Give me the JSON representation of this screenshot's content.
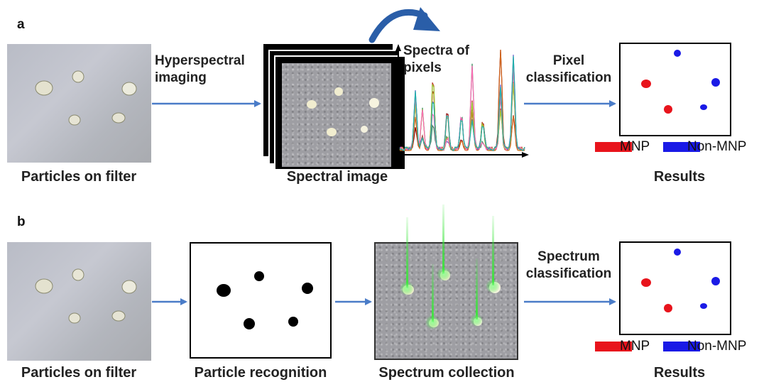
{
  "panels": {
    "a": {
      "label": "a",
      "steps": [
        {
          "caption": "Particles on filter"
        },
        {
          "caption": "Spectral image"
        },
        {
          "caption": "Results"
        }
      ],
      "arrow1_label": [
        "Hyperspectral",
        "imaging"
      ],
      "spectra_label": [
        "Spectra of",
        "pixels"
      ],
      "arrow2_label": [
        "Pixel",
        "classification"
      ]
    },
    "b": {
      "label": "b",
      "steps": [
        {
          "caption": "Particles on filter"
        },
        {
          "caption": "Particle recognition"
        },
        {
          "caption": "Spectrum collection"
        },
        {
          "caption": "Results"
        }
      ],
      "arrow_label": [
        "Spectrum",
        "classification"
      ]
    }
  },
  "legend": {
    "mnp": {
      "label": "MNP",
      "color": "#e8141c"
    },
    "non_mnp": {
      "label": "Non-MNP",
      "color": "#1a1ae6"
    }
  },
  "colors": {
    "arrow": "#4a7cc8",
    "particle_black": "#000000",
    "laser": "#39e639"
  }
}
